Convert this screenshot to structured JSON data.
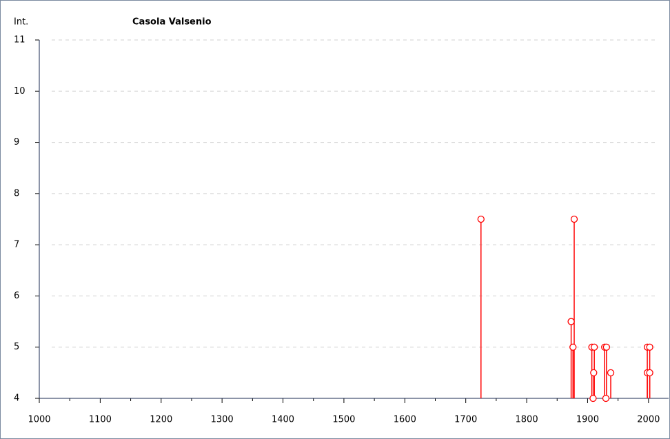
{
  "chart_data": {
    "type": "stem",
    "title": "Casola Valsenio",
    "y_label": "Int.",
    "series": [
      {
        "color": "#ff0000",
        "x": [
          1725,
          1873,
          1876,
          1878,
          1907,
          1909,
          1910,
          1911,
          1928,
          1930,
          1931,
          1938,
          1998,
          1998,
          2002,
          2002
        ],
        "values": [
          7.5,
          5.5,
          5.0,
          7.5,
          5.0,
          4.0,
          4.5,
          5.0,
          5.0,
          4.0,
          5.0,
          4.5,
          5.0,
          4.5,
          5.0,
          4.5
        ]
      }
    ],
    "xlim": [
      1000,
      2033
    ],
    "xticks": [
      1000,
      1100,
      1200,
      1300,
      1400,
      1500,
      1600,
      1700,
      1800,
      1900,
      2000
    ],
    "ylim": [
      4,
      11
    ],
    "yticks": [
      4,
      5,
      6,
      7,
      8,
      9,
      10,
      11
    ],
    "grid": true
  }
}
